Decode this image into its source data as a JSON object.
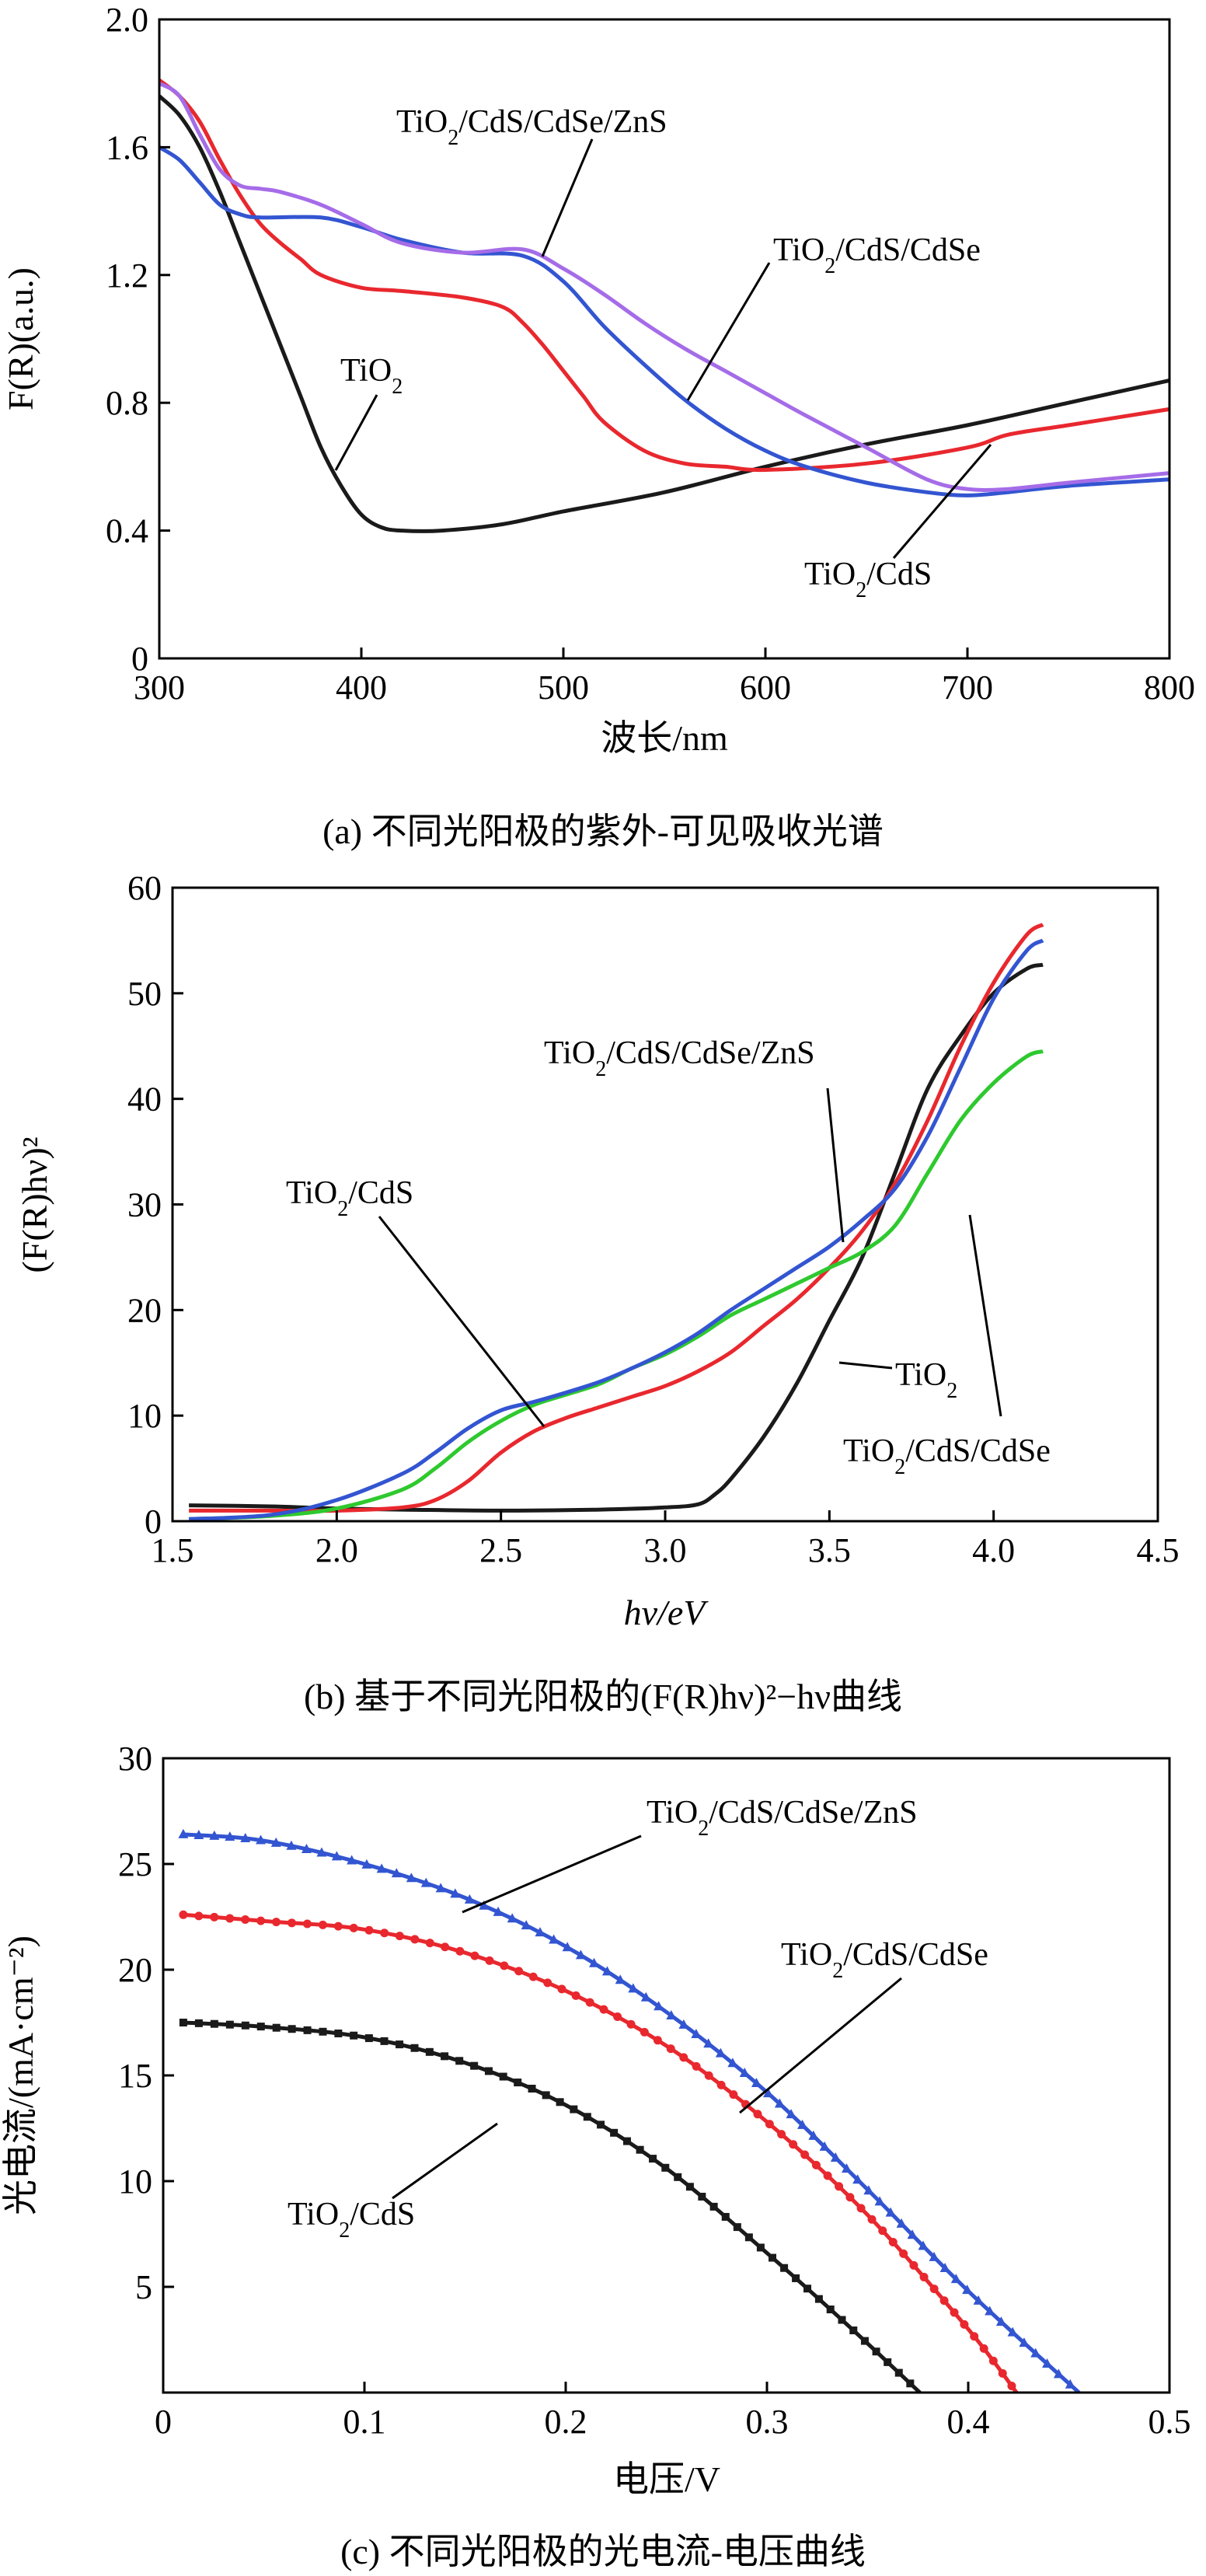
{
  "charts": [
    {
      "type": "line",
      "caption": "(a) 不同光阳极的紫外-可见吸收光谱",
      "xlabel": "波长/nm",
      "ylabel": "F(R)(a.u.)",
      "xlim": [
        300,
        800
      ],
      "ylim": [
        0,
        2.0
      ],
      "xticks": [
        "300",
        "400",
        "500",
        "600",
        "700",
        "800"
      ],
      "yticks": [
        "0",
        "0.4",
        "0.8",
        "1.2",
        "1.6",
        "2.0"
      ],
      "grid": false,
      "annotations": [
        {
          "text": "TiO2/CdS/CdSe/ZnS"
        },
        {
          "text": "TiO2/CdS/CdSe"
        },
        {
          "text": "TiO2"
        },
        {
          "text": "TiO2/CdS"
        }
      ],
      "series": [
        {
          "name": "TiO2",
          "color": "#1a1a1a",
          "x": [
            300,
            310,
            320,
            330,
            340,
            350,
            360,
            370,
            380,
            390,
            400,
            410,
            420,
            440,
            470,
            500,
            550,
            600,
            650,
            700,
            750,
            800
          ],
          "y": [
            1.76,
            1.7,
            1.6,
            1.46,
            1.3,
            1.14,
            0.98,
            0.82,
            0.66,
            0.54,
            0.45,
            0.41,
            0.4,
            0.4,
            0.42,
            0.46,
            0.52,
            0.6,
            0.67,
            0.73,
            0.8,
            0.87
          ]
        },
        {
          "name": "TiO2/CdS",
          "color": "#e8282e",
          "x": [
            300,
            310,
            320,
            330,
            340,
            350,
            360,
            370,
            380,
            400,
            420,
            450,
            470,
            480,
            490,
            500,
            510,
            520,
            540,
            560,
            580,
            600,
            650,
            700,
            720,
            750,
            800
          ],
          "y": [
            1.81,
            1.76,
            1.68,
            1.56,
            1.45,
            1.36,
            1.3,
            1.25,
            1.2,
            1.16,
            1.15,
            1.13,
            1.1,
            1.05,
            0.98,
            0.9,
            0.82,
            0.74,
            0.65,
            0.61,
            0.6,
            0.59,
            0.61,
            0.66,
            0.7,
            0.73,
            0.78
          ]
        },
        {
          "name": "TiO2/CdS/CdSe",
          "color": "#3355d1",
          "x": [
            300,
            310,
            320,
            330,
            340,
            350,
            380,
            400,
            420,
            450,
            480,
            500,
            520,
            540,
            560,
            580,
            600,
            620,
            650,
            680,
            700,
            720,
            750,
            800
          ],
          "y": [
            1.6,
            1.56,
            1.49,
            1.42,
            1.39,
            1.38,
            1.38,
            1.35,
            1.31,
            1.27,
            1.26,
            1.18,
            1.04,
            0.92,
            0.81,
            0.72,
            0.65,
            0.6,
            0.55,
            0.52,
            0.51,
            0.52,
            0.54,
            0.56
          ]
        },
        {
          "name": "TiO2/CdS/CdSe/ZnS",
          "color": "#a56ce8",
          "x": [
            300,
            310,
            320,
            330,
            340,
            350,
            360,
            380,
            400,
            420,
            450,
            480,
            500,
            520,
            540,
            560,
            580,
            600,
            620,
            650,
            680,
            700,
            720,
            750,
            800
          ],
          "y": [
            1.8,
            1.76,
            1.64,
            1.53,
            1.48,
            1.47,
            1.46,
            1.42,
            1.36,
            1.3,
            1.27,
            1.28,
            1.22,
            1.14,
            1.05,
            0.97,
            0.9,
            0.83,
            0.76,
            0.66,
            0.56,
            0.53,
            0.53,
            0.55,
            0.58
          ]
        }
      ]
    },
    {
      "type": "line",
      "caption": "(b) 基于不同光阳极的(F(R)hν)²−hν曲线",
      "xlabel": "hν/eV",
      "ylabel": "(F(R)hν)²",
      "xlim": [
        1.5,
        4.5
      ],
      "ylim": [
        0,
        60
      ],
      "xticks": [
        "1.5",
        "2.0",
        "2.5",
        "3.0",
        "3.5",
        "4.0",
        "4.5"
      ],
      "yticks": [
        "0",
        "10",
        "20",
        "30",
        "40",
        "50",
        "60"
      ],
      "grid": false,
      "annotations": [
        {
          "text": "TiO2/CdS/CdSe/ZnS"
        },
        {
          "text": "TiO2/CdS"
        },
        {
          "text": "TiO2"
        },
        {
          "text": "TiO2/CdS/CdSe"
        }
      ],
      "series": [
        {
          "name": "TiO2",
          "color": "#1a1a1a",
          "x": [
            1.55,
            1.8,
            2.0,
            2.2,
            2.5,
            2.8,
            3.0,
            3.1,
            3.15,
            3.2,
            3.3,
            3.4,
            3.5,
            3.6,
            3.7,
            3.8,
            3.9,
            4.0,
            4.1,
            4.15
          ],
          "y": [
            1.5,
            1.4,
            1.2,
            1.1,
            1.0,
            1.1,
            1.3,
            1.6,
            2.5,
            4.0,
            8.0,
            13.0,
            19.0,
            25.0,
            33.0,
            41.0,
            46.0,
            50.0,
            52.3,
            52.7
          ]
        },
        {
          "name": "TiO2/CdS",
          "color": "#e8282e",
          "x": [
            1.55,
            1.8,
            2.0,
            2.2,
            2.3,
            2.4,
            2.5,
            2.6,
            2.7,
            2.8,
            2.9,
            3.0,
            3.1,
            3.2,
            3.3,
            3.4,
            3.5,
            3.6,
            3.7,
            3.8,
            3.9,
            4.0,
            4.1,
            4.15
          ],
          "y": [
            1.0,
            1.0,
            1.0,
            1.3,
            2.0,
            3.8,
            6.5,
            8.5,
            9.8,
            10.8,
            11.8,
            12.8,
            14.2,
            16.0,
            18.5,
            21.0,
            24.0,
            27.5,
            32.0,
            38.0,
            45.0,
            51.0,
            55.5,
            56.5
          ]
        },
        {
          "name": "TiO2/CdS/CdSe",
          "color": "#2ec92e",
          "x": [
            1.55,
            1.8,
            2.0,
            2.2,
            2.3,
            2.4,
            2.5,
            2.6,
            2.7,
            2.8,
            2.9,
            3.0,
            3.1,
            3.2,
            3.3,
            3.4,
            3.5,
            3.6,
            3.7,
            3.8,
            3.9,
            4.0,
            4.1,
            4.15
          ],
          "y": [
            0.2,
            0.5,
            1.2,
            3.0,
            5.0,
            7.5,
            9.5,
            11.0,
            12.0,
            13.0,
            14.5,
            15.8,
            17.5,
            19.5,
            21.0,
            22.5,
            24.0,
            25.5,
            28.0,
            33.0,
            38.0,
            41.5,
            44.0,
            44.5
          ]
        },
        {
          "name": "TiO2/CdS/CdSe/ZnS",
          "color": "#3355d1",
          "x": [
            1.55,
            1.8,
            2.0,
            2.2,
            2.3,
            2.4,
            2.5,
            2.6,
            2.7,
            2.8,
            2.9,
            3.0,
            3.1,
            3.2,
            3.3,
            3.4,
            3.5,
            3.6,
            3.7,
            3.8,
            3.9,
            4.0,
            4.1,
            4.15
          ],
          "y": [
            0.2,
            0.6,
            2.0,
            4.5,
            6.5,
            8.8,
            10.5,
            11.3,
            12.2,
            13.2,
            14.5,
            16.0,
            17.8,
            20.0,
            22.0,
            24.0,
            26.0,
            28.5,
            31.5,
            36.5,
            43.0,
            49.5,
            54.0,
            55.0
          ]
        }
      ]
    },
    {
      "type": "scatter",
      "caption": "(c) 不同光阳极的光电流-电压曲线",
      "xlabel": "电压/V",
      "ylabel": "光电流/(mA·cm⁻²)",
      "xlim": [
        0,
        0.5
      ],
      "ylim": [
        0,
        30
      ],
      "xticks": [
        "0",
        "0.1",
        "0.2",
        "0.3",
        "0.4",
        "0.5"
      ],
      "yticks": [
        "5",
        "10",
        "15",
        "20",
        "25",
        "30"
      ],
      "grid": false,
      "annotations": [
        {
          "text": "TiO2/CdS/CdSe/ZnS"
        },
        {
          "text": "TiO2/CdS/CdSe"
        },
        {
          "text": "TiO2/CdS"
        }
      ],
      "series": [
        {
          "name": "TiO2/CdS",
          "color": "#1a1a1a",
          "marker": "square",
          "x": [
            0.01,
            0.05,
            0.1,
            0.15,
            0.2,
            0.25,
            0.3,
            0.34,
            0.376
          ],
          "y": [
            17.5,
            17.3,
            16.8,
            15.6,
            13.6,
            10.6,
            6.6,
            3.2,
            0.0
          ]
        },
        {
          "name": "TiO2/CdS/CdSe",
          "color": "#e8282e",
          "marker": "circle",
          "x": [
            0.01,
            0.05,
            0.1,
            0.15,
            0.2,
            0.25,
            0.3,
            0.35,
            0.4,
            0.424
          ],
          "y": [
            22.6,
            22.3,
            21.9,
            20.8,
            19.0,
            16.4,
            12.8,
            8.4,
            3.0,
            0.0
          ]
        },
        {
          "name": "TiO2/CdS/CdSe/ZnS",
          "color": "#3355d1",
          "marker": "triangle",
          "x": [
            0.01,
            0.05,
            0.1,
            0.15,
            0.2,
            0.25,
            0.3,
            0.35,
            0.4,
            0.455
          ],
          "y": [
            26.4,
            26.1,
            25.0,
            23.4,
            21.1,
            18.0,
            14.2,
            9.6,
            4.8,
            0.0
          ]
        }
      ]
    }
  ]
}
